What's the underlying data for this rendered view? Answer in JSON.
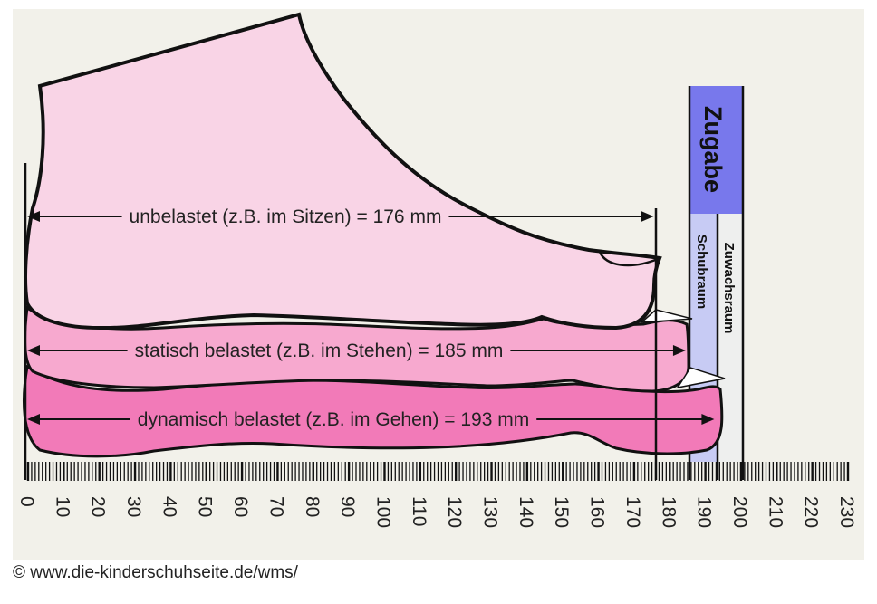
{
  "colors": {
    "panel": "#f2f1ea",
    "foot_unloaded": "#f9d4e6",
    "foot_static": "#f7a9cf",
    "foot_dynamic": "#f27ab8",
    "zugabe": "#7878ec",
    "schubraum": "#c7cbf4",
    "zuwachsraum": "#eeefee",
    "line": "#111111"
  },
  "measures": {
    "unloaded": {
      "label": "unbelastet (z.B. im Sitzen) = 176 mm",
      "mm": 176
    },
    "static": {
      "label": "statisch belastet (z.B. im Stehen) = 185 mm",
      "mm": 185
    },
    "dynamic": {
      "label": "dynamisch belastet (z.B. im Gehen) = 193 mm",
      "mm": 193
    }
  },
  "allowance": {
    "title": "Zugabe",
    "schubraum": "Schubraum",
    "zuwachsraum": "Zuwachsraum",
    "end_mm": 200
  },
  "ruler": {
    "min": 0,
    "max": 230,
    "step": 10,
    "labels": [
      "0",
      "10",
      "20",
      "30",
      "40",
      "50",
      "60",
      "70",
      "80",
      "90",
      "100",
      "110",
      "120",
      "130",
      "140",
      "150",
      "160",
      "170",
      "180",
      "190",
      "200",
      "210",
      "220",
      "230"
    ]
  },
  "credit": "© www.die-kinderschuhseite.de/wms/"
}
